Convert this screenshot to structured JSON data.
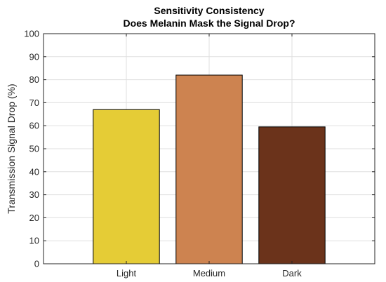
{
  "chart_data": {
    "type": "bar",
    "title": "Sensitivity Consistency",
    "subtitle": "Does Melanin Mask the Signal Drop?",
    "xlabel": "",
    "ylabel": "Transmission Signal Drop (%)",
    "categories": [
      "Light",
      "Medium",
      "Dark"
    ],
    "values": [
      67,
      82,
      59.5
    ],
    "bar_colors": [
      "#e5cc36",
      "#cd8350",
      "#6b331b"
    ],
    "ylim": [
      0,
      100
    ],
    "yticks": [
      0,
      10,
      20,
      30,
      40,
      50,
      60,
      70,
      80,
      90,
      100
    ],
    "xlim": [
      0,
      4
    ],
    "grid": true
  }
}
